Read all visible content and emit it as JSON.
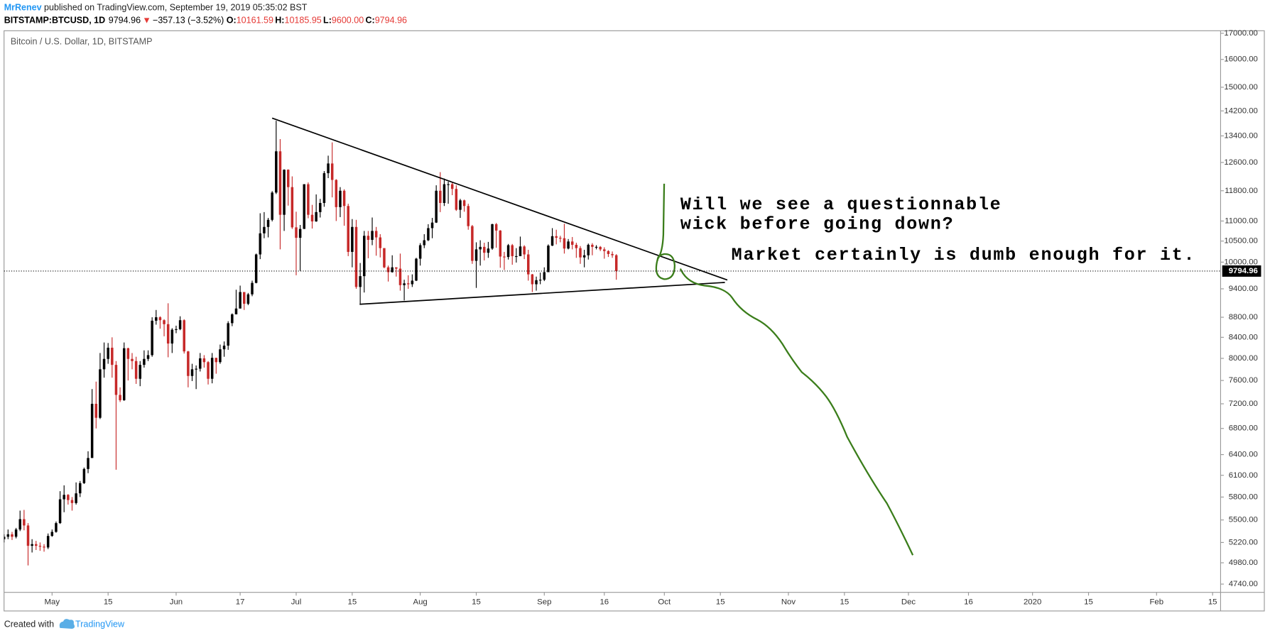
{
  "header": {
    "author": "MrRenev",
    "published": "published on TradingView.com, September 19, 2019 05:35:02 BST",
    "symbol": "BITSTAMP:BTCUSD, 1D",
    "price": "9794.96",
    "arrow": "▼",
    "change": "−357.13 (−3.52%)",
    "o_label": "O:",
    "open": "10161.59",
    "h_label": "H:",
    "high": "10185.95",
    "l_label": "L:",
    "low": "9600.00",
    "c_label": "C:",
    "close": "9794.96"
  },
  "footer": {
    "created": "Created with",
    "brand": "TradingView"
  },
  "chart_data": {
    "type": "candlestick",
    "title": "Bitcoin / U.S. Dollar, 1D, BITSTAMP",
    "log_y": true,
    "up_color": "#000000",
    "down_color": "#c62828",
    "last_price": 9794.96,
    "annotations": [
      "Will we see a questionnable",
      "wick before going down?",
      "Market certainly is dumb enough for it."
    ],
    "xlim": [
      "2019-04-19",
      "2020-02-17"
    ],
    "xticks": [
      {
        "value": "2019-05-01",
        "label": "May"
      },
      {
        "value": "2019-05-15",
        "label": "15"
      },
      {
        "value": "2019-06-01",
        "label": "Jun"
      },
      {
        "value": "2019-06-17",
        "label": "17"
      },
      {
        "value": "2019-07-01",
        "label": "Jul"
      },
      {
        "value": "2019-07-15",
        "label": "15"
      },
      {
        "value": "2019-08-01",
        "label": "Aug"
      },
      {
        "value": "2019-08-15",
        "label": "15"
      },
      {
        "value": "2019-09-01",
        "label": "Sep"
      },
      {
        "value": "2019-09-16",
        "label": "16"
      },
      {
        "value": "2019-10-01",
        "label": "Oct"
      },
      {
        "value": "2019-10-15",
        "label": "15"
      },
      {
        "value": "2019-11-01",
        "label": "Nov"
      },
      {
        "value": "2019-11-15",
        "label": "15"
      },
      {
        "value": "2019-12-01",
        "label": "Dec"
      },
      {
        "value": "2019-12-16",
        "label": "16"
      },
      {
        "value": "2020-01-01",
        "label": "2020"
      },
      {
        "value": "2020-01-15",
        "label": "15"
      },
      {
        "value": "2020-02-01",
        "label": "Feb"
      },
      {
        "value": "2020-02-15",
        "label": "15"
      }
    ],
    "ylim": [
      4650,
      17100
    ],
    "yticks": [
      {
        "value": 17000,
        "label": "17000.00"
      },
      {
        "value": 16000,
        "label": "16000.00"
      },
      {
        "value": 15000,
        "label": "15000.00"
      },
      {
        "value": 14200,
        "label": "14200.00"
      },
      {
        "value": 13400,
        "label": "13400.00"
      },
      {
        "value": 12600,
        "label": "12600.00"
      },
      {
        "value": 11800,
        "label": "11800.00"
      },
      {
        "value": 11000,
        "label": "11000.00"
      },
      {
        "value": 10500,
        "label": "10500.00"
      },
      {
        "value": 10000,
        "label": "10000.00"
      },
      {
        "value": 9400,
        "label": "9400.00"
      },
      {
        "value": 8800,
        "label": "8800.00"
      },
      {
        "value": 8400,
        "label": "8400.00"
      },
      {
        "value": 8000,
        "label": "8000.00"
      },
      {
        "value": 7600,
        "label": "7600.00"
      },
      {
        "value": 7200,
        "label": "7200.00"
      },
      {
        "value": 6800,
        "label": "6800.00"
      },
      {
        "value": 6400,
        "label": "6400.00"
      },
      {
        "value": 6100,
        "label": "6100.00"
      },
      {
        "value": 5800,
        "label": "5800.00"
      },
      {
        "value": 5500,
        "label": "5500.00"
      },
      {
        "value": 5220,
        "label": "5220.00"
      },
      {
        "value": 4980,
        "label": "4980.00"
      },
      {
        "value": 4740,
        "label": "4740.00"
      }
    ],
    "x": [
      "2019-04-19",
      "2019-04-20",
      "2019-04-21",
      "2019-04-22",
      "2019-04-23",
      "2019-04-24",
      "2019-04-25",
      "2019-04-26",
      "2019-04-27",
      "2019-04-28",
      "2019-04-29",
      "2019-04-30",
      "2019-05-01",
      "2019-05-02",
      "2019-05-03",
      "2019-05-04",
      "2019-05-05",
      "2019-05-06",
      "2019-05-07",
      "2019-05-08",
      "2019-05-09",
      "2019-05-10",
      "2019-05-11",
      "2019-05-12",
      "2019-05-13",
      "2019-05-14",
      "2019-05-15",
      "2019-05-16",
      "2019-05-17",
      "2019-05-18",
      "2019-05-19",
      "2019-05-20",
      "2019-05-21",
      "2019-05-22",
      "2019-05-23",
      "2019-05-24",
      "2019-05-25",
      "2019-05-26",
      "2019-05-27",
      "2019-05-28",
      "2019-05-29",
      "2019-05-30",
      "2019-05-31",
      "2019-06-01",
      "2019-06-02",
      "2019-06-03",
      "2019-06-04",
      "2019-06-05",
      "2019-06-06",
      "2019-06-07",
      "2019-06-08",
      "2019-06-09",
      "2019-06-10",
      "2019-06-11",
      "2019-06-12",
      "2019-06-13",
      "2019-06-14",
      "2019-06-15",
      "2019-06-16",
      "2019-06-17",
      "2019-06-18",
      "2019-06-19",
      "2019-06-20",
      "2019-06-21",
      "2019-06-22",
      "2019-06-23",
      "2019-06-24",
      "2019-06-25",
      "2019-06-26",
      "2019-06-27",
      "2019-06-28",
      "2019-06-29",
      "2019-06-30",
      "2019-07-01",
      "2019-07-02",
      "2019-07-03",
      "2019-07-04",
      "2019-07-05",
      "2019-07-06",
      "2019-07-07",
      "2019-07-08",
      "2019-07-09",
      "2019-07-10",
      "2019-07-11",
      "2019-07-12",
      "2019-07-13",
      "2019-07-14",
      "2019-07-15",
      "2019-07-16",
      "2019-07-17",
      "2019-07-18",
      "2019-07-19",
      "2019-07-20",
      "2019-07-21",
      "2019-07-22",
      "2019-07-23",
      "2019-07-24",
      "2019-07-25",
      "2019-07-26",
      "2019-07-27",
      "2019-07-28",
      "2019-07-29",
      "2019-07-30",
      "2019-07-31",
      "2019-08-01",
      "2019-08-02",
      "2019-08-03",
      "2019-08-04",
      "2019-08-05",
      "2019-08-06",
      "2019-08-07",
      "2019-08-08",
      "2019-08-09",
      "2019-08-10",
      "2019-08-11",
      "2019-08-12",
      "2019-08-13",
      "2019-08-14",
      "2019-08-15",
      "2019-08-16",
      "2019-08-17",
      "2019-08-18",
      "2019-08-19",
      "2019-08-20",
      "2019-08-21",
      "2019-08-22",
      "2019-08-23",
      "2019-08-24",
      "2019-08-25",
      "2019-08-26",
      "2019-08-27",
      "2019-08-28",
      "2019-08-29",
      "2019-08-30",
      "2019-08-31",
      "2019-09-01",
      "2019-09-02",
      "2019-09-03",
      "2019-09-04",
      "2019-09-05",
      "2019-09-06",
      "2019-09-07",
      "2019-09-08",
      "2019-09-09",
      "2019-09-10",
      "2019-09-11",
      "2019-09-12",
      "2019-09-13",
      "2019-09-14",
      "2019-09-15",
      "2019-09-16",
      "2019-09-17",
      "2019-09-18",
      "2019-09-19"
    ],
    "open": [
      5260,
      5290,
      5320,
      5290,
      5380,
      5510,
      5430,
      5180,
      5200,
      5180,
      5170,
      5160,
      5300,
      5350,
      5460,
      5770,
      5830,
      5760,
      5720,
      5850,
      5990,
      6190,
      6350,
      7200,
      6970,
      7800,
      7990,
      8200,
      7880,
      7350,
      7260,
      8190,
      7990,
      7950,
      7630,
      7880,
      7990,
      8060,
      8730,
      8800,
      8740,
      8660,
      8280,
      8550,
      8560,
      8740,
      8130,
      7680,
      7800,
      7810,
      8000,
      7930,
      7630,
      8010,
      7930,
      8170,
      8240,
      8680,
      8860,
      8980,
      9330,
      9080,
      9280,
      9530,
      10180,
      10690,
      10850,
      11030,
      11750,
      12930,
      11160,
      12390,
      11900,
      10840,
      10580,
      10800,
      11980,
      11160,
      10990,
      11230,
      11470,
      12290,
      12570,
      12100,
      11360,
      11800,
      11390,
      10240,
      10850,
      9440,
      9680,
      10630,
      10530,
      10750,
      10590,
      10330,
      9880,
      9770,
      9880,
      9850,
      9480,
      9520,
      9500,
      9580,
      10080,
      10400,
      10520,
      10820,
      10960,
      11800,
      11470,
      11980,
      11980,
      11850,
      11290,
      11540,
      11390,
      10870,
      10030,
      10300,
      10360,
      10220,
      10320,
      10920,
      10760,
      10130,
      10120,
      10400,
      10140,
      10140,
      10370,
      10180,
      9720,
      9500,
      9590,
      9600,
      9770,
      10390,
      10620,
      10580,
      10570,
      10320,
      10490,
      10410,
      10330,
      10110,
      10160,
      10410,
      10360,
      10360,
      10300,
      10260,
      10190,
      10161.59
    ],
    "high": [
      5320,
      5380,
      5350,
      5400,
      5620,
      5630,
      5460,
      5260,
      5240,
      5220,
      5200,
      5330,
      5380,
      5480,
      5880,
      5960,
      5840,
      5800,
      6000,
      6020,
      6210,
      6450,
      7450,
      7580,
      8100,
      8300,
      8290,
      8400,
      7950,
      7480,
      8300,
      8200,
      8100,
      8030,
      7950,
      8150,
      8150,
      8800,
      8950,
      8820,
      8760,
      9090,
      8580,
      8630,
      8820,
      8760,
      8140,
      7900,
      7870,
      8100,
      8060,
      7950,
      8100,
      8010,
      8260,
      8320,
      8720,
      8880,
      9380,
      9470,
      9330,
      9310,
      9580,
      10200,
      11200,
      11230,
      11080,
      11790,
      13880,
      13300,
      12400,
      12400,
      12200,
      11240,
      10900,
      11980,
      12030,
      11420,
      11700,
      11580,
      12350,
      12800,
      13200,
      12120,
      11900,
      11840,
      11450,
      11050,
      11030,
      9980,
      10750,
      10750,
      11090,
      10850,
      10670,
      10330,
      9920,
      10160,
      9880,
      10200,
      9600,
      9700,
      9720,
      10100,
      10450,
      10670,
      10920,
      11080,
      11950,
      12320,
      12140,
      12050,
      12050,
      11950,
      11580,
      11560,
      11450,
      10900,
      10470,
      10520,
      10460,
      10480,
      10930,
      10950,
      10770,
      10240,
      10430,
      10430,
      10330,
      10610,
      10400,
      10290,
      9730,
      9670,
      9760,
      9880,
      10420,
      10820,
      10780,
      10630,
      10930,
      10550,
      10600,
      10460,
      10380,
      10290,
      10440,
      10450,
      10400,
      10380,
      10350,
      10280,
      10250,
      10185.95
    ],
    "low": [
      5220,
      5260,
      5250,
      5270,
      5360,
      5370,
      4950,
      5100,
      5130,
      5120,
      5110,
      5140,
      5290,
      5340,
      5450,
      5600,
      5700,
      5620,
      5700,
      5800,
      5980,
      6130,
      6350,
      6800,
      6950,
      7650,
      7900,
      7650,
      6180,
      7230,
      7250,
      7600,
      7800,
      7540,
      7500,
      7830,
      7950,
      8030,
      8650,
      8570,
      8420,
      8020,
      8100,
      8480,
      8540,
      8090,
      7480,
      7590,
      7450,
      7760,
      7830,
      7530,
      7550,
      7720,
      7900,
      8030,
      8160,
      8620,
      8860,
      8980,
      8950,
      9050,
      9240,
      9520,
      10070,
      10570,
      10590,
      10990,
      11710,
      10300,
      10750,
      11400,
      10800,
      9700,
      9800,
      10800,
      11070,
      10810,
      10980,
      11090,
      11370,
      12150,
      11620,
      11000,
      11100,
      10880,
      10140,
      9880,
      9400,
      9080,
      9320,
      10090,
      10400,
      10150,
      10110,
      9860,
      9560,
      9760,
      9670,
      9360,
      9150,
      9400,
      9440,
      9570,
      9920,
      10330,
      10500,
      10570,
      10950,
      11230,
      11390,
      11450,
      11680,
      11260,
      11080,
      11240,
      10780,
      9960,
      9420,
      9920,
      10040,
      10100,
      10290,
      10340,
      9870,
      9820,
      10060,
      9940,
      9990,
      10140,
      10070,
      9580,
      9330,
      9360,
      9500,
      9570,
      9770,
      10380,
      10420,
      10470,
      10200,
      10300,
      10300,
      10100,
      9960,
      9880,
      10060,
      10160,
      10300,
      10260,
      10080,
      10120,
      10100,
      9600
    ],
    "close": [
      5290,
      5320,
      5290,
      5380,
      5510,
      5430,
      5180,
      5200,
      5180,
      5170,
      5160,
      5300,
      5350,
      5460,
      5770,
      5830,
      5760,
      5720,
      5850,
      5990,
      6190,
      6350,
      7200,
      6970,
      7800,
      7990,
      8200,
      7880,
      7350,
      7260,
      8190,
      7990,
      7950,
      7630,
      7880,
      7990,
      8060,
      8730,
      8800,
      8740,
      8660,
      8280,
      8550,
      8560,
      8740,
      8130,
      7680,
      7800,
      7810,
      8000,
      7930,
      7630,
      8010,
      7930,
      8170,
      8240,
      8680,
      8860,
      8980,
      9330,
      9080,
      9280,
      9530,
      10180,
      10690,
      10850,
      11030,
      11750,
      12930,
      11160,
      12390,
      11900,
      10840,
      10580,
      10800,
      11980,
      11160,
      10990,
      11230,
      11470,
      12290,
      12570,
      12100,
      11360,
      11800,
      11390,
      10240,
      10850,
      9440,
      9680,
      10630,
      10530,
      10750,
      10590,
      10330,
      9880,
      9770,
      9880,
      9850,
      9480,
      9520,
      9500,
      9580,
      10080,
      10400,
      10520,
      10820,
      10960,
      11800,
      11470,
      11980,
      11980,
      11850,
      11290,
      11540,
      11390,
      10870,
      10030,
      10300,
      10360,
      10220,
      10320,
      10920,
      10760,
      10130,
      10120,
      10400,
      10140,
      10140,
      10370,
      10180,
      9720,
      9500,
      9590,
      9600,
      9770,
      10390,
      10620,
      10580,
      10570,
      10320,
      10490,
      10410,
      10330,
      10110,
      10160,
      10410,
      10360,
      10360,
      10300,
      10260,
      10190,
      10161.59,
      9794.96
    ]
  }
}
